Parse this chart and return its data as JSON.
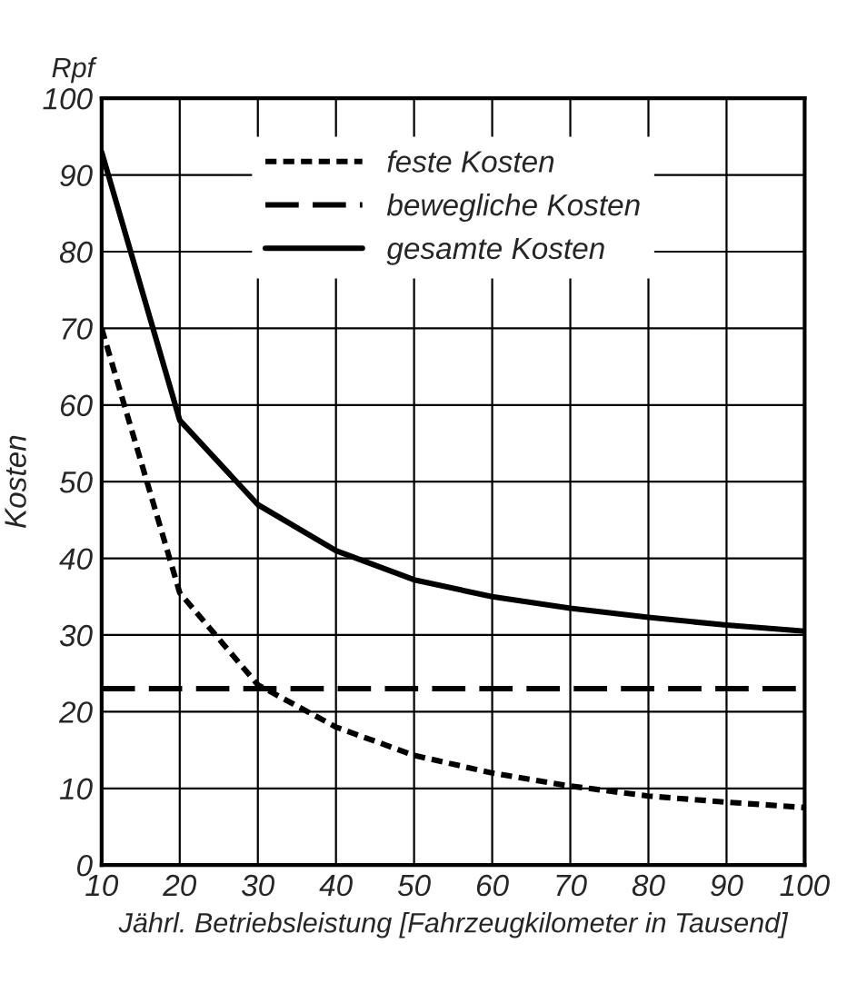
{
  "chart_data": {
    "type": "line",
    "xlabel": "Jährl. Betriebsleistung [Fahrzeugkilometer in Tausend]",
    "ylabel": "Kosten",
    "annotations": [
      "Rpf"
    ],
    "x": [
      10,
      20,
      30,
      40,
      50,
      60,
      70,
      80,
      90,
      100
    ],
    "series": [
      {
        "name": "feste Kosten",
        "color": "#000000",
        "line_style": "dotted",
        "values": [
          70,
          35.5,
          23.5,
          18,
          14.3,
          12,
          10.3,
          9,
          8.2,
          7.5
        ]
      },
      {
        "name": "bewegliche Kosten",
        "color": "#000000",
        "line_style": "dashed",
        "values": [
          23,
          23,
          23,
          23,
          23,
          23,
          23,
          23,
          23,
          23
        ]
      },
      {
        "name": "gesamte Kosten",
        "color": "#000000",
        "line_style": "solid",
        "values": [
          93,
          58,
          47,
          41,
          37.2,
          35,
          33.5,
          32.3,
          31.3,
          30.5
        ]
      }
    ],
    "xlim": [
      10,
      100
    ],
    "xticks": [
      10,
      20,
      30,
      40,
      50,
      60,
      70,
      80,
      90,
      100
    ],
    "ylim": [
      0,
      100
    ],
    "yticks": [
      0,
      10,
      20,
      30,
      40,
      50,
      60,
      70,
      80,
      90,
      100
    ],
    "grid": true,
    "legend": "top",
    "marker": "none"
  }
}
